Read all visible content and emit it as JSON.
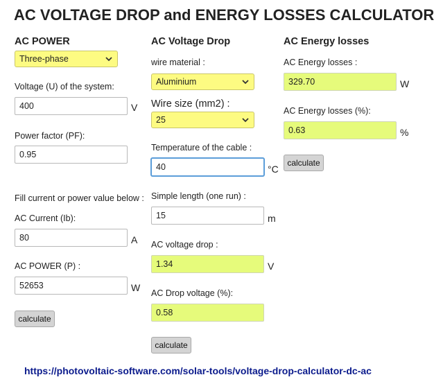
{
  "title": "AC VOLTAGE DROP and ENERGY LOSSES CALCULATOR",
  "col1": {
    "heading": "AC POWER",
    "phase_select": "Three-phase",
    "voltage_label": "Voltage (U) of the system:",
    "voltage_value": "400",
    "voltage_unit": "V",
    "pf_label": "Power factor (PF):",
    "pf_value": "0.95",
    "fill_note": "Fill current or power value below :",
    "current_label": "AC Current (Ib):",
    "current_value": "80",
    "current_unit": "A",
    "power_label": "AC POWER (P) :",
    "power_value": "52653",
    "power_unit": "W",
    "calculate": "calculate"
  },
  "col2": {
    "heading": "AC Voltage Drop",
    "wire_material_label": "wire material :",
    "wire_material_select": "Aluminium",
    "wire_size_label": "Wire size (mm2) :",
    "wire_size_select": "25",
    "temp_label": "Temperature of the cable :",
    "temp_value": "40",
    "temp_unit": "°C",
    "length_label": "Simple length (one run) :",
    "length_value": "15",
    "length_unit": "m",
    "vdrop_label": "AC voltage drop :",
    "vdrop_value": "1.34",
    "vdrop_unit": "V",
    "vdrop_pct_label": "AC Drop voltage (%):",
    "vdrop_pct_value": "0.58",
    "calculate": "calculate"
  },
  "col3": {
    "heading": "AC Energy losses",
    "loss_label": "AC Energy losses :",
    "loss_value": "329.70",
    "loss_unit": "W",
    "loss_pct_label": "AC Energy losses (%):",
    "loss_pct_value": "0.63",
    "loss_pct_unit": "%",
    "calculate": "calculate"
  },
  "footer_url": "https://photovoltaic-software.com/solar-tools/voltage-drop-calculator-dc-ac",
  "colors": {
    "select_bg": "#fdfb82",
    "output_bg": "#e6fb7b",
    "button_bg": "#d4d4d4",
    "footer_link": "#0a1a8c"
  },
  "icons": {
    "dropdown": "chevron-down-icon"
  }
}
